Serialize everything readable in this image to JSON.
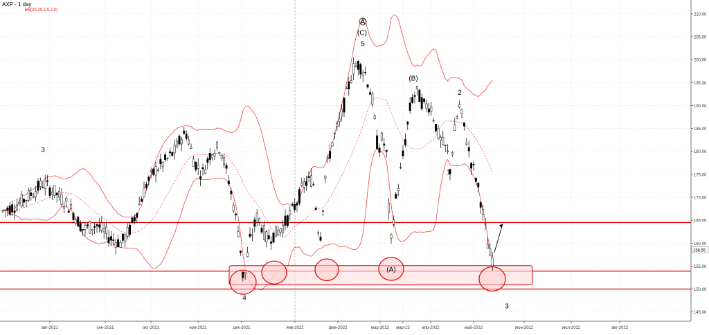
{
  "chart_data": {
    "type": "candlestick",
    "title": "AXP - 1 day",
    "indicator_label": "BB(20,20,2,0,2,0)",
    "ylim": [
      143,
      213
    ],
    "y_ticks": [
      145,
      150,
      155,
      160,
      165,
      170,
      175,
      180,
      185,
      190,
      195,
      200,
      205,
      210
    ],
    "y_tick_labels": [
      "145.00",
      "150.00",
      "155.00",
      "160.00",
      "165.00",
      "170.00",
      "175.00",
      "180.00",
      "185.00",
      "190.00",
      "195.00",
      "200.00",
      "205.00",
      "210.00"
    ],
    "current_price": "158.55",
    "x_tick_labels": [
      "авг-2021",
      "сен-2021",
      "окт-2021",
      "ноя-2021",
      "дек-2021",
      "янв-2022",
      "фев-2022",
      "мар-2022",
      "мар-15",
      "апр-2022",
      "май-2022",
      "июн-2022",
      "июл-2022",
      "авг-2022"
    ],
    "grid": true,
    "colors": {
      "bollinger": "#ee4444",
      "support_line": "#e00000",
      "zone_fill": "#ffdddd",
      "zone_stroke": "#e00000",
      "bull_candle": "#ffffff",
      "bear_candle": "#000000",
      "axis": "#555555"
    },
    "horizontal_levels": [
      164.5,
      153.9,
      150.0
    ],
    "support_zone": {
      "from": 150.9,
      "to": 155.1
    },
    "wave_labels": [
      {
        "text": "3",
        "price": 180.5
      },
      {
        "text": "4",
        "price": 148.2
      },
      {
        "text": "A",
        "price": 208.4
      },
      {
        "text": "(C)",
        "price": 206.0
      },
      {
        "text": "5",
        "price": 203.6
      },
      {
        "text": "(B)",
        "price": 196.0
      },
      {
        "text": "(A)",
        "price": 154.4
      },
      {
        "text": "2",
        "price": 192.9
      },
      {
        "text": "1",
        "price": 175.6
      },
      {
        "text": "3",
        "price": 146.4
      }
    ]
  }
}
